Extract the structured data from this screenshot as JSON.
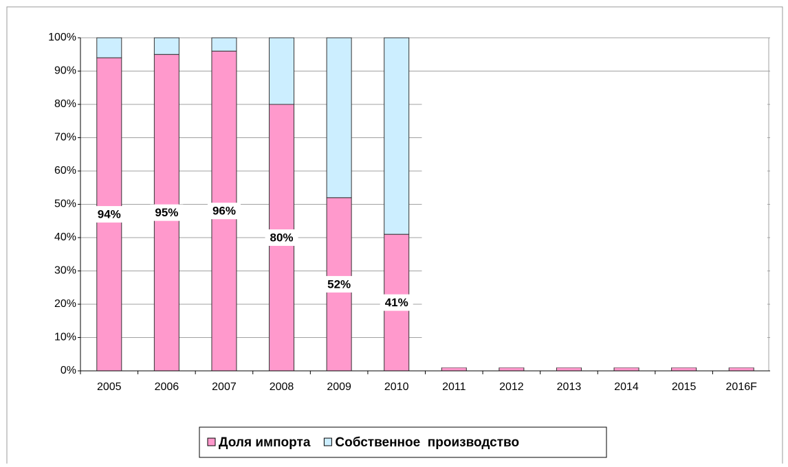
{
  "chart_data": {
    "type": "stacked_bar",
    "categories": [
      "2005",
      "2006",
      "2007",
      "2008",
      "2009",
      "2010",
      "2011",
      "2012",
      "2013",
      "2014",
      "2015",
      "2016F"
    ],
    "series": [
      {
        "name": "Доля импорта",
        "color": "#ff99cc",
        "values": [
          94,
          95,
          96,
          80,
          52,
          41,
          null,
          null,
          null,
          null,
          null,
          null
        ],
        "value_labels": [
          "94%",
          "95%",
          "96%",
          "80%",
          "52%",
          "41%",
          null,
          null,
          null,
          null,
          null,
          null
        ]
      },
      {
        "name": "Собственное  производство",
        "color": "#cceeff",
        "values": [
          6,
          5,
          4,
          20,
          48,
          59,
          null,
          null,
          null,
          null,
          null,
          null
        ]
      }
    ],
    "ylim": [
      0,
      100
    ],
    "yticks": [
      {
        "value": 0,
        "label": "0%"
      },
      {
        "value": 10,
        "label": "10%"
      },
      {
        "value": 20,
        "label": "20%"
      },
      {
        "value": 30,
        "label": "30%"
      },
      {
        "value": 40,
        "label": "40%"
      },
      {
        "value": 50,
        "label": "50%"
      },
      {
        "value": 60,
        "label": "60%"
      },
      {
        "value": 70,
        "label": "70%"
      },
      {
        "value": 80,
        "label": "80%"
      },
      {
        "value": 90,
        "label": "90%"
      },
      {
        "value": 100,
        "label": "100%"
      }
    ],
    "grid": true,
    "legend": "bottom"
  }
}
